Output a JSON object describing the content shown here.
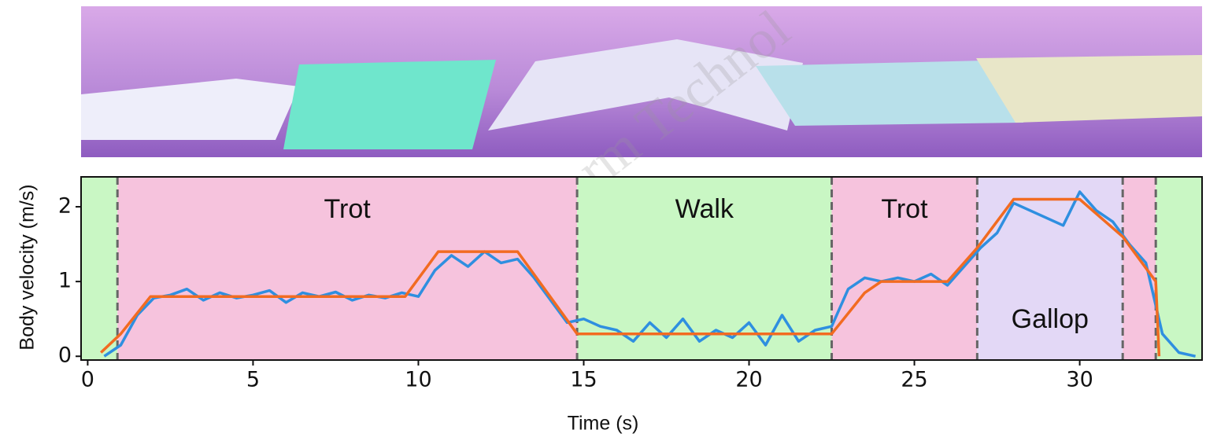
{
  "watermark": "Front Inform Technol",
  "chart_data": {
    "type": "line",
    "xlabel": "Time (s)",
    "ylabel": "Body velocity (m/s)",
    "xlim": [
      -0.2,
      33.7
    ],
    "ylim": [
      -0.05,
      2.4
    ],
    "xticks": [
      0,
      5,
      10,
      15,
      20,
      25,
      30
    ],
    "yticks": [
      0,
      1,
      2
    ],
    "phase_boundaries": [
      0.9,
      14.8,
      22.5,
      26.9,
      31.3,
      32.3
    ],
    "phases": [
      {
        "color": "#c9f7c4"
      },
      {
        "label": "Trot",
        "color": "#f6c3dd"
      },
      {
        "label": "Walk",
        "color": "#c9f7c4"
      },
      {
        "label": "Trot",
        "color": "#f6c3dd"
      },
      {
        "label": "Gallop",
        "color": "#e3d8f6"
      },
      {
        "color": "#f6c3dd"
      },
      {
        "color": "#c9f7c4"
      }
    ],
    "series": [
      {
        "color": "#2f8fe0",
        "x": [
          0.5,
          1.0,
          1.5,
          2.0,
          2.5,
          3.0,
          3.5,
          4.0,
          4.5,
          5.0,
          5.5,
          6.0,
          6.5,
          7.0,
          7.5,
          8.0,
          8.5,
          9.0,
          9.5,
          10.0,
          10.5,
          11.0,
          11.5,
          12.0,
          12.5,
          13.0,
          13.5,
          14.0,
          14.5,
          15.0,
          15.5,
          16.0,
          16.5,
          17.0,
          17.5,
          18.0,
          18.5,
          19.0,
          19.5,
          20.0,
          20.5,
          21.0,
          21.5,
          22.0,
          22.5,
          23.0,
          23.5,
          24.0,
          24.5,
          25.0,
          25.5,
          26.0,
          26.5,
          27.0,
          27.5,
          28.0,
          28.5,
          29.0,
          29.5,
          30.0,
          30.5,
          31.0,
          31.5,
          32.0,
          32.5,
          33.0,
          33.5
        ],
        "values": [
          0.0,
          0.15,
          0.55,
          0.78,
          0.82,
          0.9,
          0.75,
          0.85,
          0.78,
          0.82,
          0.88,
          0.72,
          0.85,
          0.8,
          0.86,
          0.75,
          0.82,
          0.78,
          0.85,
          0.8,
          1.15,
          1.35,
          1.2,
          1.4,
          1.25,
          1.3,
          1.05,
          0.75,
          0.45,
          0.5,
          0.4,
          0.35,
          0.2,
          0.45,
          0.25,
          0.5,
          0.2,
          0.35,
          0.25,
          0.45,
          0.15,
          0.55,
          0.2,
          0.35,
          0.4,
          0.9,
          1.05,
          1.0,
          1.05,
          1.0,
          1.1,
          0.95,
          1.2,
          1.45,
          1.65,
          2.05,
          1.95,
          1.85,
          1.75,
          2.2,
          1.95,
          1.8,
          1.5,
          1.25,
          0.3,
          0.05,
          0.0
        ]
      },
      {
        "color": "#f26b21",
        "x": [
          0.4,
          1.0,
          1.9,
          9.6,
          10.6,
          13.0,
          14.8,
          22.5,
          23.5,
          24.0,
          26.0,
          26.9,
          28.0,
          30.0,
          31.3,
          32.3,
          32.4
        ],
        "values": [
          0.05,
          0.3,
          0.8,
          0.8,
          1.4,
          1.4,
          0.3,
          0.3,
          0.85,
          1.0,
          1.0,
          1.45,
          2.1,
          2.1,
          1.6,
          1.0,
          0.0
        ]
      }
    ]
  }
}
